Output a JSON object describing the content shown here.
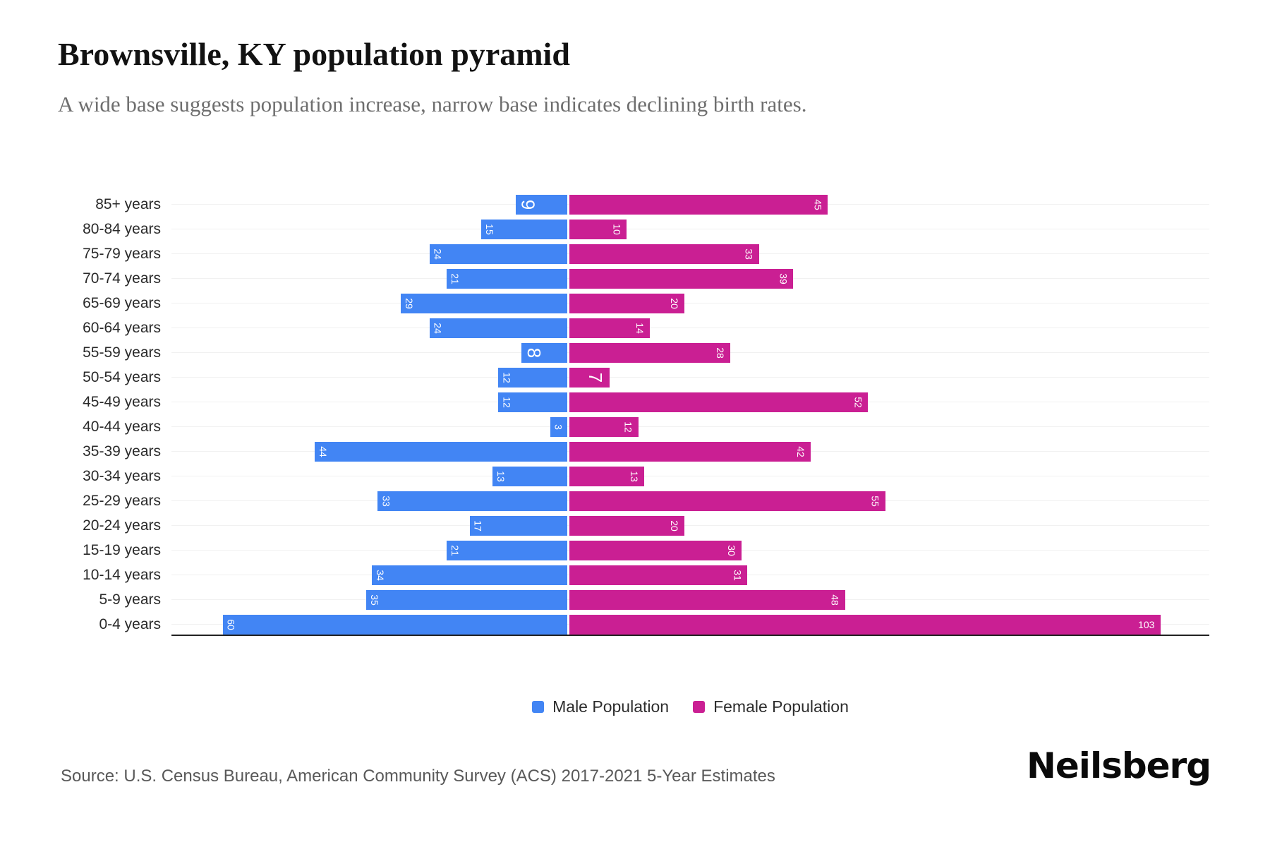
{
  "header": {
    "title": "Brownsville, KY population pyramid",
    "subtitle": "A wide base suggests population increase, narrow base indicates declining birth rates."
  },
  "chart_data": {
    "type": "bar",
    "variant": "population-pyramid",
    "orientation": "horizontal",
    "categories": [
      "85+ years",
      "80-84 years",
      "75-79 years",
      "70-74 years",
      "65-69 years",
      "60-64 years",
      "55-59 years",
      "50-54 years",
      "45-49 years",
      "40-44 years",
      "35-39 years",
      "30-34 years",
      "25-29 years",
      "20-24 years",
      "15-19 years",
      "10-14 years",
      "5-9 years",
      "0-4 years"
    ],
    "series": [
      {
        "name": "Male Population",
        "side": "left",
        "color": "#4285F4",
        "values": [
          9,
          15,
          24,
          21,
          29,
          24,
          8,
          12,
          12,
          3,
          44,
          13,
          33,
          17,
          21,
          34,
          35,
          60
        ]
      },
      {
        "name": "Female Population",
        "side": "right",
        "color": "#CA1F93",
        "values": [
          45,
          10,
          33,
          39,
          20,
          14,
          28,
          7,
          52,
          12,
          42,
          13,
          55,
          20,
          30,
          31,
          48,
          103
        ]
      }
    ],
    "value_label_styles": {
      "large": [
        [
          0,
          0
        ],
        [
          0,
          6
        ],
        [
          1,
          7
        ]
      ],
      "horizontal": [
        [
          1,
          17
        ]
      ]
    },
    "axis": {
      "male_max": 69,
      "female_max": 112
    },
    "grid": "horizontal-light",
    "legend_position": "bottom-center",
    "value_labels": "inside-end, white, rotated 90deg"
  },
  "legend": {
    "male_swatch": "male-color-square",
    "female_swatch": "female-color-square"
  },
  "footer": {
    "source": "Source: U.S. Census Bureau, American Community Survey (ACS) 2017-2021 5-Year Estimates",
    "brand": "Neilsberg"
  }
}
